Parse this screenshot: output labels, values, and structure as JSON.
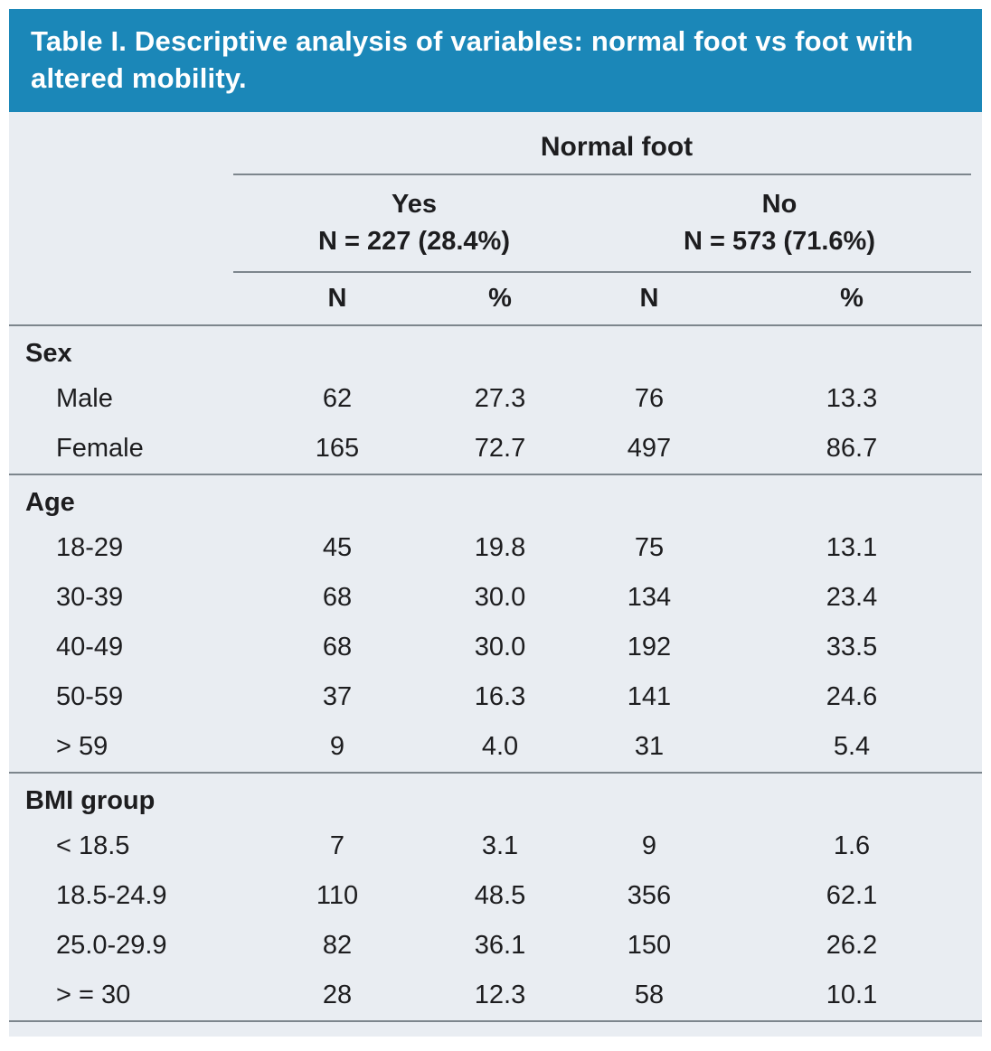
{
  "title": "Table I. Descriptive analysis of variables: normal foot vs foot with altered mobility.",
  "table": {
    "group_header": "Normal foot",
    "subgroups": [
      {
        "label": "Yes",
        "n_label": "N = 227 (28.4%)"
      },
      {
        "label": "No",
        "n_label": "N = 573 (71.6%)"
      }
    ],
    "col_headers": [
      "N",
      "%",
      "N",
      "%"
    ],
    "sections": [
      {
        "name": "Sex",
        "rows": [
          {
            "label": "Male",
            "values": [
              "62",
              "27.3",
              "76",
              "13.3"
            ]
          },
          {
            "label": "Female",
            "values": [
              "165",
              "72.7",
              "497",
              "86.7"
            ]
          }
        ]
      },
      {
        "name": "Age",
        "rows": [
          {
            "label": "18-29",
            "values": [
              "45",
              "19.8",
              "75",
              "13.1"
            ]
          },
          {
            "label": "30-39",
            "values": [
              "68",
              "30.0",
              "134",
              "23.4"
            ]
          },
          {
            "label": "40-49",
            "values": [
              "68",
              "30.0",
              "192",
              "33.5"
            ]
          },
          {
            "label": "50-59",
            "values": [
              "37",
              "16.3",
              "141",
              "24.6"
            ]
          },
          {
            "label": "> 59",
            "values": [
              "9",
              "4.0",
              "31",
              "5.4"
            ]
          }
        ]
      },
      {
        "name": "BMI group",
        "rows": [
          {
            "label": "< 18.5",
            "values": [
              "7",
              "3.1",
              "9",
              "1.6"
            ]
          },
          {
            "label": "18.5-24.9",
            "values": [
              "110",
              "48.5",
              "356",
              "62.1"
            ]
          },
          {
            "label": "25.0-29.9",
            "values": [
              "82",
              "36.1",
              "150",
              "26.2"
            ]
          },
          {
            "label": "> = 30",
            "values": [
              "28",
              "12.3",
              "58",
              "10.1"
            ]
          }
        ]
      }
    ]
  },
  "colors": {
    "header_bg": "#1b87b8",
    "body_bg": "#e9edf2",
    "text": "#1d1d1f",
    "rule": "#7d868d"
  }
}
